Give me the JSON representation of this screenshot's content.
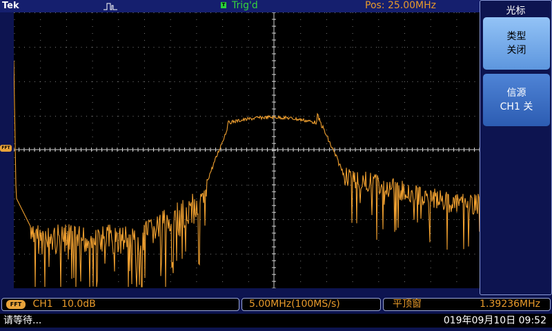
{
  "header": {
    "brand": "Tek",
    "trigger_status": "Trig'd",
    "position": "Pos: 25.00MHz"
  },
  "side_menu": {
    "title": "光标",
    "buttons": [
      {
        "line1": "类型",
        "line2": "关闭"
      },
      {
        "line1": "信源",
        "line2": "CH1 关"
      }
    ]
  },
  "ref_marker": {
    "label": "FFT"
  },
  "bottom_bar": {
    "fft_badge": "FFT",
    "channel": "CH1",
    "scale": "10.0dB",
    "timebase": "5.00MHz(100MS/s)",
    "window": "平顶窗",
    "frequency": "1.39236MHz"
  },
  "status_bar": {
    "message": "请等待...",
    "datetime": "019年09月10日 09:52"
  },
  "colors": {
    "trace": "#f0a030",
    "grid_background": "#000000",
    "ui_background": "#0d1450",
    "accent_orange": "#e89a2a",
    "trigger_green": "#35d43c"
  }
}
